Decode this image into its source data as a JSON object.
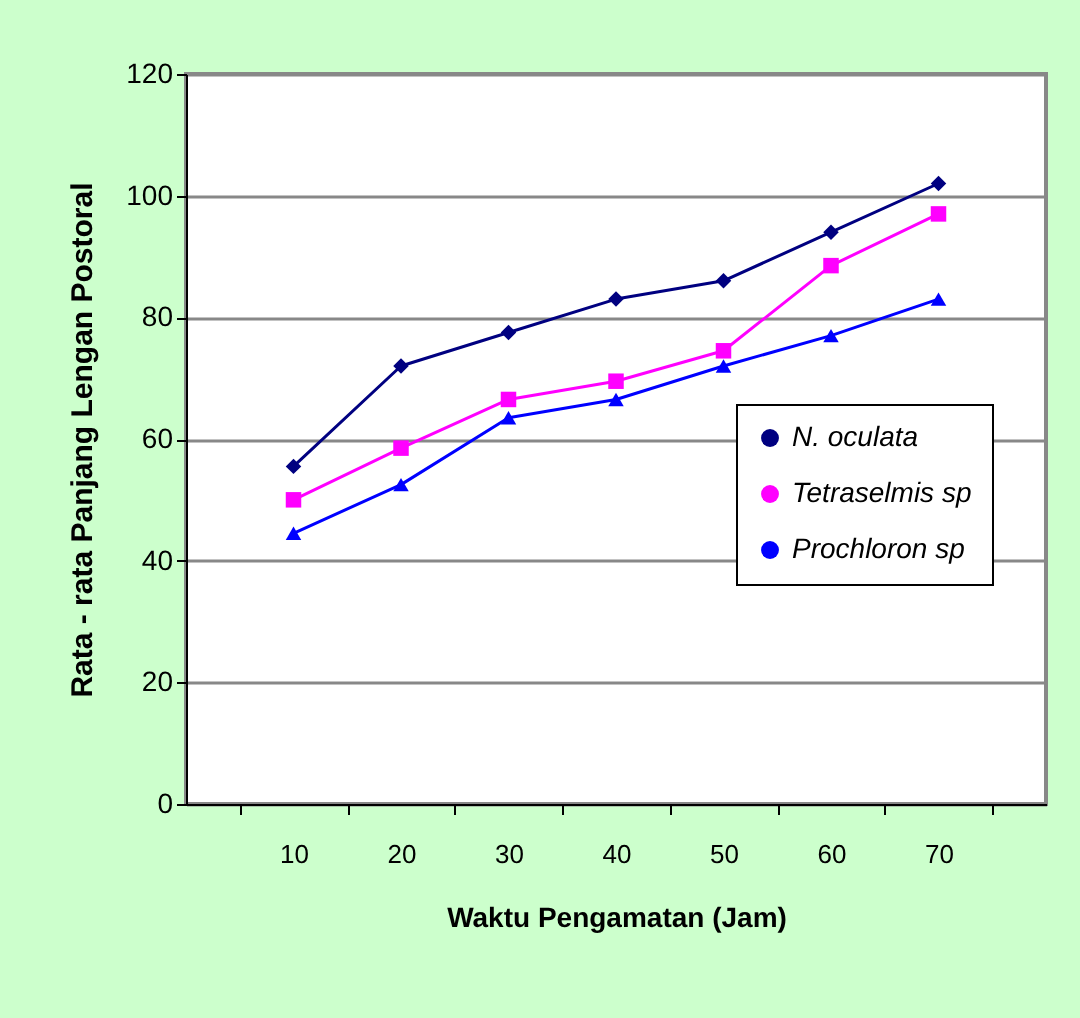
{
  "chart_data": {
    "type": "line",
    "xlabel": "Waktu Pengamatan (Jam)",
    "ylabel": "Rata - rata Panjang Lengan Postoral",
    "categories": [
      "10",
      "20",
      "30",
      "40",
      "50",
      "60",
      "70"
    ],
    "series": [
      {
        "name": "N. oculata",
        "color": "#000080",
        "marker": "diamond",
        "values": [
          55.5,
          72,
          77.5,
          83,
          86,
          94,
          102
        ]
      },
      {
        "name": "Tetraselmis sp",
        "color": "#ff00ff",
        "marker": "square",
        "values": [
          50,
          58.5,
          66.5,
          69.5,
          74.5,
          88.5,
          97
        ]
      },
      {
        "name": "Prochloron sp",
        "color": "#0000ff",
        "marker": "triangle",
        "values": [
          44.5,
          52.5,
          63.5,
          66.5,
          72,
          77,
          83
        ]
      }
    ],
    "ylim": [
      0,
      120
    ],
    "yticks": [
      0,
      20,
      40,
      60,
      80,
      100,
      120
    ],
    "grid": "y",
    "legend": "right",
    "line_style": "solid"
  }
}
